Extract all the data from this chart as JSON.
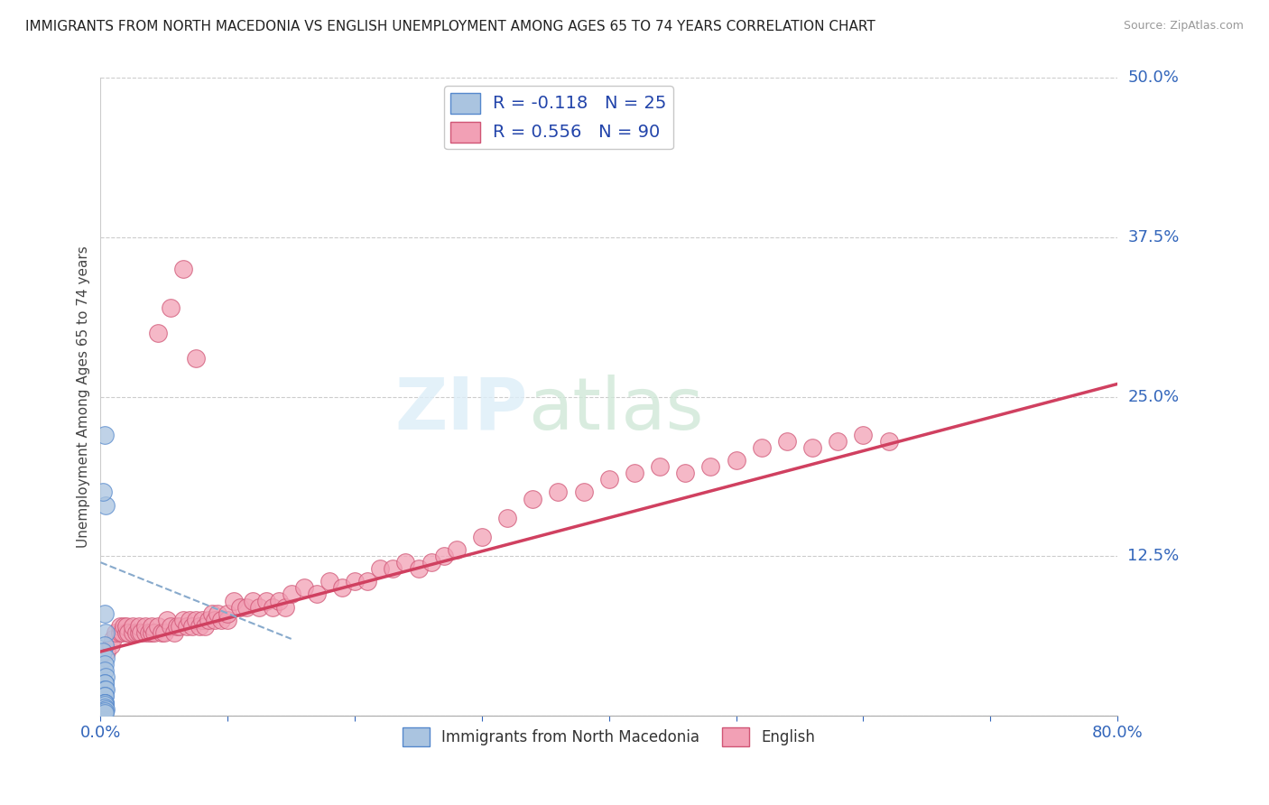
{
  "title": "IMMIGRANTS FROM NORTH MACEDONIA VS ENGLISH UNEMPLOYMENT AMONG AGES 65 TO 74 YEARS CORRELATION CHART",
  "source": "Source: ZipAtlas.com",
  "ylabel": "Unemployment Among Ages 65 to 74 years",
  "xlim": [
    0.0,
    0.8
  ],
  "ylim": [
    0.0,
    0.5
  ],
  "ytick_positions": [
    0.0,
    0.125,
    0.25,
    0.375,
    0.5
  ],
  "ytick_labels_right": [
    "",
    "12.5%",
    "25.0%",
    "37.5%",
    "50.0%"
  ],
  "legend1_label": "R = -0.118   N = 25",
  "legend2_label": "R = 0.556   N = 90",
  "legend_bottom1": "Immigrants from North Macedonia",
  "legend_bottom2": "English",
  "blue_color": "#aac4e0",
  "pink_color": "#f2a0b5",
  "blue_edge": "#5588cc",
  "pink_edge": "#d05575",
  "trend_pink_color": "#d04060",
  "trend_blue_color": "#88aacc",
  "blue_x": [
    0.003,
    0.004,
    0.002,
    0.003,
    0.004,
    0.003,
    0.002,
    0.004,
    0.003,
    0.003,
    0.004,
    0.003,
    0.003,
    0.003,
    0.004,
    0.003,
    0.003,
    0.003,
    0.003,
    0.003,
    0.003,
    0.003,
    0.004,
    0.003,
    0.003
  ],
  "blue_y": [
    0.22,
    0.165,
    0.175,
    0.08,
    0.065,
    0.055,
    0.05,
    0.045,
    0.04,
    0.035,
    0.03,
    0.025,
    0.025,
    0.02,
    0.02,
    0.015,
    0.015,
    0.01,
    0.01,
    0.01,
    0.008,
    0.006,
    0.005,
    0.003,
    0.002
  ],
  "pink_x": [
    0.005,
    0.008,
    0.01,
    0.012,
    0.015,
    0.015,
    0.017,
    0.018,
    0.02,
    0.02,
    0.022,
    0.025,
    0.025,
    0.028,
    0.03,
    0.03,
    0.032,
    0.035,
    0.035,
    0.038,
    0.04,
    0.04,
    0.042,
    0.045,
    0.048,
    0.05,
    0.052,
    0.055,
    0.058,
    0.06,
    0.062,
    0.065,
    0.068,
    0.07,
    0.072,
    0.075,
    0.078,
    0.08,
    0.082,
    0.085,
    0.088,
    0.09,
    0.092,
    0.095,
    0.1,
    0.1,
    0.105,
    0.11,
    0.115,
    0.12,
    0.125,
    0.13,
    0.135,
    0.14,
    0.145,
    0.15,
    0.16,
    0.17,
    0.18,
    0.19,
    0.2,
    0.21,
    0.22,
    0.23,
    0.24,
    0.25,
    0.26,
    0.27,
    0.28,
    0.3,
    0.32,
    0.34,
    0.36,
    0.38,
    0.4,
    0.42,
    0.44,
    0.46,
    0.48,
    0.5,
    0.52,
    0.54,
    0.56,
    0.58,
    0.6,
    0.62,
    0.045,
    0.055,
    0.065,
    0.075
  ],
  "pink_y": [
    0.05,
    0.055,
    0.06,
    0.065,
    0.065,
    0.07,
    0.065,
    0.07,
    0.065,
    0.07,
    0.065,
    0.065,
    0.07,
    0.065,
    0.065,
    0.07,
    0.065,
    0.065,
    0.07,
    0.065,
    0.065,
    0.07,
    0.065,
    0.07,
    0.065,
    0.065,
    0.075,
    0.07,
    0.065,
    0.07,
    0.07,
    0.075,
    0.07,
    0.075,
    0.07,
    0.075,
    0.07,
    0.075,
    0.07,
    0.075,
    0.08,
    0.075,
    0.08,
    0.075,
    0.075,
    0.08,
    0.09,
    0.085,
    0.085,
    0.09,
    0.085,
    0.09,
    0.085,
    0.09,
    0.085,
    0.095,
    0.1,
    0.095,
    0.105,
    0.1,
    0.105,
    0.105,
    0.115,
    0.115,
    0.12,
    0.115,
    0.12,
    0.125,
    0.13,
    0.14,
    0.155,
    0.17,
    0.175,
    0.175,
    0.185,
    0.19,
    0.195,
    0.19,
    0.195,
    0.2,
    0.21,
    0.215,
    0.21,
    0.215,
    0.22,
    0.215,
    0.3,
    0.32,
    0.35,
    0.28
  ],
  "pink_trend_x0": 0.0,
  "pink_trend_y0": 0.05,
  "pink_trend_x1": 0.8,
  "pink_trend_y1": 0.26,
  "blue_trend_x0": 0.0,
  "blue_trend_y0": 0.12,
  "blue_trend_x1": 0.15,
  "blue_trend_y1": 0.06
}
